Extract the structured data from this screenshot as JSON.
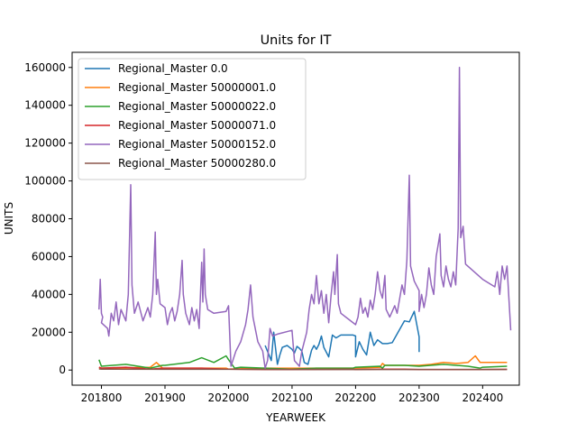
{
  "chart_data": {
    "type": "line",
    "title": "Units for IT",
    "xlabel": "YEARWEEK",
    "ylabel": "UNITS",
    "xlim": [
      201728,
      202430
    ],
    "ylim": [
      -8000,
      168000
    ],
    "xticks": [
      201800,
      201900,
      202000,
      202100,
      202200,
      202300,
      202400
    ],
    "yticks": [
      0,
      20000,
      40000,
      60000,
      80000,
      100000,
      120000,
      140000,
      160000
    ],
    "grid": false,
    "legend": "top-left",
    "series": [
      {
        "name": "Regional_Master 0.0",
        "color": "#1f77b4",
        "points": [
          [
            202030,
            13000
          ],
          [
            202035,
            5000
          ],
          [
            202037,
            20000
          ],
          [
            202040,
            3000
          ],
          [
            202042,
            8000
          ],
          [
            202044,
            12000
          ],
          [
            202048,
            13000
          ],
          [
            202052,
            11000
          ],
          [
            202100,
            11000
          ],
          [
            202102,
            9000
          ],
          [
            202104,
            12500
          ],
          [
            202106,
            11500
          ],
          [
            202108,
            10000
          ],
          [
            202110,
            4000
          ],
          [
            202113,
            3000
          ],
          [
            202116,
            10500
          ],
          [
            202118,
            13000
          ],
          [
            202120,
            11000
          ],
          [
            202122,
            13500
          ],
          [
            202124,
            18000
          ],
          [
            202126,
            12000
          ],
          [
            202130,
            7000
          ],
          [
            202133,
            18500
          ],
          [
            202136,
            17000
          ],
          [
            202140,
            18500
          ],
          [
            202146,
            18500
          ],
          [
            202150,
            18500
          ],
          [
            202152,
            18000
          ],
          [
            202200,
            7000
          ],
          [
            202203,
            15000
          ],
          [
            202206,
            11000
          ],
          [
            202209,
            8000
          ],
          [
            202212,
            20000
          ],
          [
            202215,
            13000
          ],
          [
            202218,
            16000
          ],
          [
            202222,
            14000
          ],
          [
            202226,
            14000
          ],
          [
            202230,
            14500
          ],
          [
            202240,
            26000
          ],
          [
            202244,
            25500
          ],
          [
            202248,
            31000
          ],
          [
            202252,
            17500
          ],
          [
            202300,
            9500
          ]
        ]
      },
      {
        "name": "Regional_Master 50000001.0",
        "color": "#ff7f0e",
        "points": [
          [
            201750,
            1000
          ],
          [
            201810,
            1000
          ],
          [
            201840,
            1500
          ],
          [
            201845,
            4000
          ],
          [
            201850,
            1000
          ],
          [
            201930,
            1000
          ],
          [
            201950,
            1000
          ],
          [
            202000,
            500
          ],
          [
            202030,
            1000
          ],
          [
            202100,
            1000
          ],
          [
            202150,
            1000
          ],
          [
            202200,
            1000
          ],
          [
            202220,
            1500
          ],
          [
            202222,
            3500
          ],
          [
            202224,
            2500
          ],
          [
            202240,
            2500
          ],
          [
            202300,
            2500
          ],
          [
            202310,
            3000
          ],
          [
            202320,
            4000
          ],
          [
            202330,
            3500
          ],
          [
            202340,
            4000
          ],
          [
            202346,
            7500
          ],
          [
            202350,
            4000
          ],
          [
            202420,
            4000
          ]
        ]
      },
      {
        "name": "Regional_Master 50000022.0",
        "color": "#2ca02c",
        "points": [
          [
            201750,
            5500
          ],
          [
            201800,
            2000
          ],
          [
            201820,
            3000
          ],
          [
            201840,
            1000
          ],
          [
            201850,
            2500
          ],
          [
            201900,
            2500
          ],
          [
            201920,
            4000
          ],
          [
            201930,
            6500
          ],
          [
            201940,
            4000
          ],
          [
            201950,
            7500
          ],
          [
            202000,
            5500
          ],
          [
            202005,
            1000
          ],
          [
            202010,
            1500
          ],
          [
            202030,
            1000
          ],
          [
            202050,
            500
          ],
          [
            202100,
            500
          ],
          [
            202120,
            1000
          ],
          [
            202150,
            1000
          ],
          [
            202200,
            1500
          ],
          [
            202220,
            2000
          ],
          [
            202222,
            1000
          ],
          [
            202224,
            2500
          ],
          [
            202240,
            2500
          ],
          [
            202300,
            2000
          ],
          [
            202320,
            3000
          ],
          [
            202340,
            2000
          ],
          [
            202350,
            1000
          ],
          [
            202400,
            1500
          ],
          [
            202420,
            2000
          ]
        ]
      },
      {
        "name": "Regional_Master 50000071.0",
        "color": "#d62728",
        "points": [
          [
            201750,
            1500
          ],
          [
            201800,
            1000
          ],
          [
            201820,
            1500
          ],
          [
            201840,
            500
          ],
          [
            201850,
            1000
          ],
          [
            201900,
            1000
          ],
          [
            201930,
            1000
          ],
          [
            201950,
            500
          ],
          [
            202000,
            500
          ],
          [
            202030,
            300
          ],
          [
            202100,
            300
          ],
          [
            202150,
            400
          ],
          [
            202200,
            300
          ],
          [
            202220,
            500
          ],
          [
            202240,
            500
          ],
          [
            202300,
            300
          ],
          [
            202350,
            300
          ],
          [
            202420,
            400
          ]
        ]
      },
      {
        "name": "Regional_Master 50000152.0",
        "color": "#9467bd",
        "points": [
          [
            201750,
            32000
          ],
          [
            201751,
            48000
          ],
          [
            201752,
            30000
          ],
          [
            201753,
            28000
          ],
          [
            201800,
            25000
          ],
          [
            201805,
            22000
          ],
          [
            201806,
            18000
          ],
          [
            201808,
            30000
          ],
          [
            201810,
            26000
          ],
          [
            201812,
            36000
          ],
          [
            201814,
            24000
          ],
          [
            201816,
            32000
          ],
          [
            201820,
            26000
          ],
          [
            201822,
            40000
          ],
          [
            201824,
            98000
          ],
          [
            201825,
            45000
          ],
          [
            201827,
            30000
          ],
          [
            201830,
            36000
          ],
          [
            201834,
            26000
          ],
          [
            201838,
            33000
          ],
          [
            201840,
            28000
          ],
          [
            201842,
            40000
          ],
          [
            201844,
            73000
          ],
          [
            201845,
            40000
          ],
          [
            201846,
            48000
          ],
          [
            201848,
            35000
          ],
          [
            201900,
            33000
          ],
          [
            201902,
            24000
          ],
          [
            201904,
            30000
          ],
          [
            201906,
            33000
          ],
          [
            201908,
            26000
          ],
          [
            201910,
            31000
          ],
          [
            201912,
            40000
          ],
          [
            201914,
            58000
          ],
          [
            201915,
            40000
          ],
          [
            201917,
            30000
          ],
          [
            201920,
            24000
          ],
          [
            201922,
            33000
          ],
          [
            201924,
            26000
          ],
          [
            201926,
            32000
          ],
          [
            201928,
            22000
          ],
          [
            201930,
            57000
          ],
          [
            201931,
            36000
          ],
          [
            201932,
            64000
          ],
          [
            201933,
            40000
          ],
          [
            201935,
            32000
          ],
          [
            201940,
            30000
          ],
          [
            201950,
            31000
          ],
          [
            202000,
            34000
          ],
          [
            202002,
            2000
          ],
          [
            202006,
            10000
          ],
          [
            202010,
            15000
          ],
          [
            202014,
            24000
          ],
          [
            202016,
            32000
          ],
          [
            202018,
            45000
          ],
          [
            202020,
            28000
          ],
          [
            202024,
            15000
          ],
          [
            202028,
            10000
          ],
          [
            202030,
            1000
          ],
          [
            202032,
            5000
          ],
          [
            202034,
            22000
          ],
          [
            202036,
            18000
          ],
          [
            202040,
            19000
          ],
          [
            202100,
            21000
          ],
          [
            202102,
            5000
          ],
          [
            202106,
            2000
          ],
          [
            202108,
            10000
          ],
          [
            202112,
            20000
          ],
          [
            202114,
            32000
          ],
          [
            202116,
            40000
          ],
          [
            202118,
            35000
          ],
          [
            202120,
            50000
          ],
          [
            202122,
            35000
          ],
          [
            202124,
            42000
          ],
          [
            202126,
            30000
          ],
          [
            202128,
            40000
          ],
          [
            202130,
            25000
          ],
          [
            202132,
            40000
          ],
          [
            202134,
            52000
          ],
          [
            202135,
            40000
          ],
          [
            202137,
            61000
          ],
          [
            202138,
            35000
          ],
          [
            202140,
            30000
          ],
          [
            202152,
            24000
          ],
          [
            202200,
            24000
          ],
          [
            202202,
            28000
          ],
          [
            202204,
            38000
          ],
          [
            202206,
            30000
          ],
          [
            202208,
            33000
          ],
          [
            202210,
            28000
          ],
          [
            202212,
            37000
          ],
          [
            202214,
            32000
          ],
          [
            202216,
            40000
          ],
          [
            202218,
            52000
          ],
          [
            202220,
            42000
          ],
          [
            202222,
            38000
          ],
          [
            202224,
            50000
          ],
          [
            202225,
            32000
          ],
          [
            202228,
            28000
          ],
          [
            202232,
            34000
          ],
          [
            202234,
            30000
          ],
          [
            202238,
            45000
          ],
          [
            202240,
            40000
          ],
          [
            202242,
            58000
          ],
          [
            202244,
            103000
          ],
          [
            202245,
            55000
          ],
          [
            202248,
            47000
          ],
          [
            202252,
            42000
          ],
          [
            202300,
            31000
          ],
          [
            202302,
            40000
          ],
          [
            202304,
            33000
          ],
          [
            202306,
            40000
          ],
          [
            202308,
            54000
          ],
          [
            202310,
            45000
          ],
          [
            202312,
            40000
          ],
          [
            202314,
            60000
          ],
          [
            202316,
            68000
          ],
          [
            202317,
            72000
          ],
          [
            202318,
            50000
          ],
          [
            202320,
            44000
          ],
          [
            202322,
            55000
          ],
          [
            202324,
            48000
          ],
          [
            202326,
            44000
          ],
          [
            202328,
            52000
          ],
          [
            202330,
            45000
          ],
          [
            202332,
            75000
          ],
          [
            202333,
            160000
          ],
          [
            202334,
            70000
          ],
          [
            202336,
            76000
          ],
          [
            202338,
            56000
          ],
          [
            202400,
            48000
          ],
          [
            202410,
            44000
          ],
          [
            202412,
            52000
          ],
          [
            202414,
            40000
          ],
          [
            202416,
            55000
          ],
          [
            202418,
            48000
          ],
          [
            202420,
            55000
          ],
          [
            202423,
            21000
          ]
        ]
      },
      {
        "name": "Regional_Master 50000280.0",
        "color": "#8c564b",
        "points": [
          [
            201750,
            600
          ],
          [
            201800,
            500
          ],
          [
            201850,
            400
          ],
          [
            201950,
            400
          ],
          [
            202050,
            300
          ],
          [
            202150,
            300
          ],
          [
            202250,
            300
          ],
          [
            202350,
            300
          ],
          [
            202420,
            300
          ]
        ]
      }
    ]
  }
}
